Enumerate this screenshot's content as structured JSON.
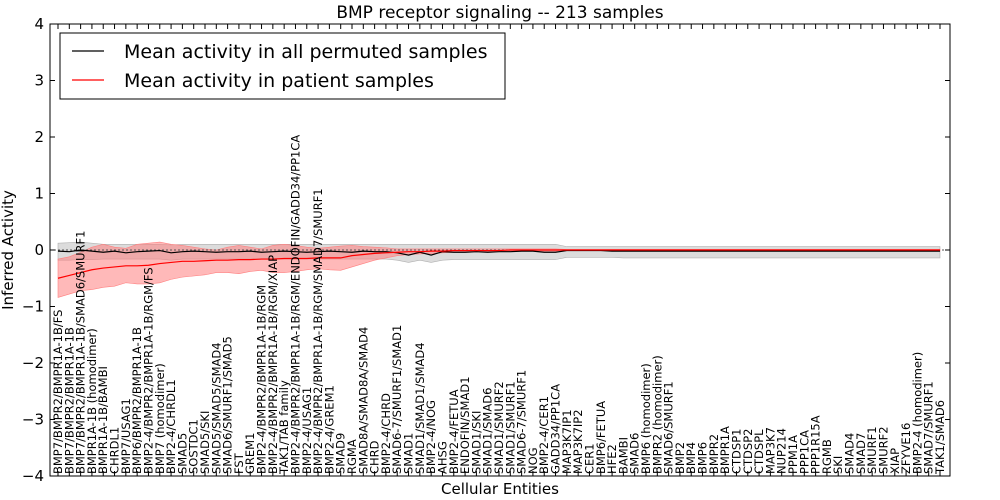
{
  "chart_data": {
    "type": "line",
    "title": "BMP receptor signaling -- 213 samples",
    "xlabel": "Cellular Entities",
    "ylabel": "Inferred Activity",
    "ylim": [
      -4,
      4
    ],
    "yticks": [
      -4,
      -3,
      -2,
      -1,
      0,
      1,
      2,
      3,
      4
    ],
    "ytick_labels": [
      "−4",
      "−3",
      "−2",
      "−1",
      "0",
      "1",
      "2",
      "3",
      "4"
    ],
    "grid": false,
    "legend_position": "upper-left",
    "categories": [
      "BMP7/BMPR2/BMPR1A-1B/FS",
      "BMP7/BMPR2/BMPR1A-1B",
      "BMP7/BMPR2/BMPR1A-1B/SMAD6/SMURF1",
      "BMPR1A-1B (homodimer)",
      "BMPR1A-1B/BAMBI",
      "CHRDL1",
      "BMP7/USAG1",
      "BMP6/BMPR2/BMPR1A-1B",
      "BMP2-4/BMPR2/BMPR1A-1B/RGM/FS",
      "BMP7 (homodimer)",
      "BMP2-4/CHRDL1",
      "SMAD5",
      "SOSTDC1",
      "SMAD5/SKI",
      "SMAD5/SMAD5/SMAD4",
      "SMAD6/SMURF1/SMAD5",
      "FST",
      "GREM1",
      "BMP2-4/BMPR2/BMPR1A-1B/RGM",
      "BMP2-4/BMPR2/BMPR1A-1B/RGM/XIAP",
      "TAK1/TAB family",
      "BMP2-4/BMPR2/BMPR1A-1B/RGM/ENDOFIN/GADD34/PP1CA",
      "BMP2-4/USAG1",
      "BMP2-4/BMPR2/BMPR1A-1B/RGM/SMAD7/SMURF1",
      "BMP2-4/GREM1",
      "SMAD9",
      "RGMA",
      "SMAD8A/SMAD8A/SMAD4",
      "CHRD",
      "BMP2-4/CHRD",
      "SMAD6-7/SMURF1/SMAD1",
      "SMAD1",
      "SMAD1/SMAD1/SMAD4",
      "BMP2-4/NOG",
      "AHSG",
      "BMP2-4/FETUA",
      "ENDOFIN/SMAD1",
      "SMAD1/SKI",
      "SMAD1/SMAD6",
      "SMAD1/SMURF2",
      "SMAD1/SMURF1",
      "SMAD6-7/SMURF1",
      "NOG",
      "BMP2-4/CER1",
      "GADD34/PP1CA",
      "MAP3K7IP1",
      "MAP3K7IP2",
      "CER1",
      "BMP6/FETUA",
      "HFE2",
      "BAMBI",
      "SMAD6",
      "BMP6 (homodimer)",
      "BMPR2 (homodimer)",
      "SMAD6/SMURF1",
      "BMP2",
      "BMP4",
      "BMP6",
      "BMPR2",
      "BMPR1A",
      "CTDSP1",
      "CTDSP2",
      "CTDSPL",
      "MAP3K7",
      "NUP214",
      "PPM1A",
      "PPP1CA",
      "PPP1R15A",
      "RGMB",
      "SKI",
      "SMAD4",
      "SMAD7",
      "SMURF1",
      "SMURF2",
      "XIAP",
      "ZFYVE16",
      "BMP2-4 (homodimer)",
      "SMAD7/SMURF1",
      "TAK1/SMAD6"
    ],
    "series": [
      {
        "name": "Mean activity in all permuted samples",
        "color": "#000000",
        "values": [
          -0.02,
          -0.03,
          0.0,
          -0.02,
          -0.04,
          -0.02,
          -0.05,
          -0.03,
          -0.02,
          -0.01,
          -0.05,
          -0.03,
          -0.02,
          -0.03,
          -0.04,
          -0.03,
          -0.03,
          -0.02,
          -0.04,
          -0.03,
          -0.02,
          -0.03,
          -0.04,
          -0.03,
          -0.02,
          -0.03,
          -0.04,
          -0.02,
          -0.03,
          -0.03,
          -0.05,
          -0.09,
          -0.04,
          -0.09,
          -0.03,
          -0.04,
          -0.04,
          -0.03,
          -0.04,
          -0.03,
          -0.03,
          -0.02,
          -0.02,
          -0.04,
          -0.04,
          -0.01,
          -0.01,
          -0.01,
          -0.01,
          -0.02,
          -0.02,
          -0.02,
          -0.02,
          -0.02,
          -0.02,
          -0.02,
          -0.02,
          -0.02,
          -0.02,
          -0.02,
          -0.02,
          -0.02,
          -0.02,
          -0.02,
          -0.02,
          -0.02,
          -0.02,
          -0.02,
          -0.02,
          -0.02,
          -0.02,
          -0.02,
          -0.02,
          -0.02,
          -0.02,
          -0.02,
          -0.02,
          -0.02,
          -0.02
        ],
        "band_upper": [
          0.12,
          0.13,
          0.14,
          0.12,
          0.1,
          0.1,
          0.1,
          0.1,
          0.1,
          0.1,
          0.09,
          0.1,
          0.1,
          0.1,
          0.1,
          0.1,
          0.1,
          0.1,
          0.1,
          0.1,
          0.1,
          0.1,
          0.1,
          0.1,
          0.1,
          0.1,
          0.1,
          0.1,
          0.1,
          0.1,
          0.1,
          0.1,
          0.1,
          0.1,
          0.1,
          0.1,
          0.1,
          0.1,
          0.1,
          0.1,
          0.1,
          0.1,
          0.1,
          0.1,
          0.1,
          0.06,
          0.06,
          0.06,
          0.06,
          0.06,
          0.06,
          0.06,
          0.06,
          0.06,
          0.06,
          0.06,
          0.06,
          0.06,
          0.06,
          0.06,
          0.06,
          0.06,
          0.06,
          0.06,
          0.06,
          0.06,
          0.06,
          0.06,
          0.06,
          0.06,
          0.06,
          0.06,
          0.06,
          0.06,
          0.06,
          0.06,
          0.06,
          0.06,
          0.06
        ],
        "band_lower": [
          -0.18,
          -0.18,
          -0.17,
          -0.17,
          -0.16,
          -0.16,
          -0.16,
          -0.16,
          -0.16,
          -0.16,
          -0.18,
          -0.16,
          -0.16,
          -0.16,
          -0.16,
          -0.16,
          -0.16,
          -0.16,
          -0.16,
          -0.16,
          -0.16,
          -0.16,
          -0.16,
          -0.16,
          -0.16,
          -0.16,
          -0.16,
          -0.16,
          -0.16,
          -0.16,
          -0.18,
          -0.22,
          -0.18,
          -0.22,
          -0.18,
          -0.17,
          -0.17,
          -0.17,
          -0.17,
          -0.17,
          -0.17,
          -0.17,
          -0.17,
          -0.17,
          -0.17,
          -0.13,
          -0.13,
          -0.13,
          -0.13,
          -0.13,
          -0.14,
          -0.14,
          -0.14,
          -0.14,
          -0.14,
          -0.14,
          -0.14,
          -0.14,
          -0.14,
          -0.14,
          -0.14,
          -0.14,
          -0.14,
          -0.14,
          -0.14,
          -0.14,
          -0.14,
          -0.14,
          -0.14,
          -0.14,
          -0.14,
          -0.14,
          -0.14,
          -0.14,
          -0.14,
          -0.14,
          -0.14,
          -0.14,
          -0.14
        ]
      },
      {
        "name": "Mean activity in patient samples",
        "color": "#ff0000",
        "values": [
          -0.5,
          -0.45,
          -0.4,
          -0.35,
          -0.32,
          -0.3,
          -0.28,
          -0.28,
          -0.27,
          -0.24,
          -0.22,
          -0.2,
          -0.2,
          -0.19,
          -0.18,
          -0.18,
          -0.17,
          -0.17,
          -0.16,
          -0.16,
          -0.15,
          -0.15,
          -0.15,
          -0.14,
          -0.14,
          -0.14,
          -0.1,
          -0.08,
          -0.06,
          -0.05,
          -0.04,
          -0.03,
          -0.03,
          -0.02,
          -0.02,
          -0.01,
          -0.01,
          -0.01,
          -0.01,
          -0.01,
          0.0,
          0.0,
          0.0,
          0.0,
          0.0,
          0.0,
          0.0,
          0.0,
          0.0,
          0.0,
          0.0,
          0.0,
          0.0,
          0.0,
          0.0,
          0.0,
          0.0,
          0.0,
          0.0,
          0.0,
          0.0,
          0.0,
          0.0,
          0.0,
          0.0,
          0.0,
          0.0,
          0.0,
          0.0,
          0.0,
          0.0,
          0.0,
          0.0,
          0.0,
          0.0,
          0.0,
          0.0,
          0.0,
          0.0
        ],
        "band_upper": [
          -0.16,
          -0.12,
          -0.04,
          0.05,
          0.1,
          0.05,
          0.03,
          0.1,
          0.12,
          0.14,
          0.1,
          0.08,
          0.05,
          0.02,
          0.0,
          0.05,
          0.08,
          0.05,
          0.02,
          0.08,
          0.1,
          0.08,
          0.05,
          0.03,
          0.05,
          0.07,
          0.08,
          0.06,
          0.05,
          0.04,
          0.02,
          0.02,
          0.02,
          0.02,
          0.02,
          0.02,
          0.02,
          0.02,
          0.02,
          0.02,
          0.02,
          0.02,
          0.02,
          0.02,
          0.02,
          0.01,
          0.01,
          0.01,
          0.01,
          0.01,
          0.01,
          0.01,
          0.01,
          0.01,
          0.01,
          0.01,
          0.01,
          0.01,
          0.01,
          0.01,
          0.01,
          0.01,
          0.01,
          0.01,
          0.01,
          0.01,
          0.01,
          0.01,
          0.01,
          0.01,
          0.01,
          0.01,
          0.01,
          0.01,
          0.01,
          0.01,
          0.01,
          0.01,
          0.01
        ],
        "band_lower": [
          -0.84,
          -0.78,
          -0.72,
          -0.7,
          -0.66,
          -0.64,
          -0.58,
          -0.6,
          -0.6,
          -0.58,
          -0.52,
          -0.48,
          -0.46,
          -0.44,
          -0.4,
          -0.4,
          -0.42,
          -0.38,
          -0.36,
          -0.4,
          -0.4,
          -0.38,
          -0.35,
          -0.33,
          -0.35,
          -0.36,
          -0.3,
          -0.24,
          -0.18,
          -0.14,
          -0.1,
          -0.08,
          -0.07,
          -0.06,
          -0.05,
          -0.04,
          -0.04,
          -0.03,
          -0.03,
          -0.03,
          -0.02,
          -0.02,
          -0.02,
          -0.02,
          -0.02,
          -0.01,
          -0.01,
          -0.01,
          -0.01,
          -0.01,
          -0.01,
          -0.01,
          -0.01,
          -0.01,
          -0.01,
          -0.01,
          -0.01,
          -0.01,
          -0.01,
          -0.01,
          -0.01,
          -0.01,
          -0.01,
          -0.01,
          -0.01,
          -0.01,
          -0.01,
          -0.01,
          -0.01,
          -0.01,
          -0.01,
          -0.01,
          -0.01,
          -0.01,
          -0.01,
          -0.01,
          -0.01,
          -0.01,
          -0.01
        ]
      }
    ]
  }
}
